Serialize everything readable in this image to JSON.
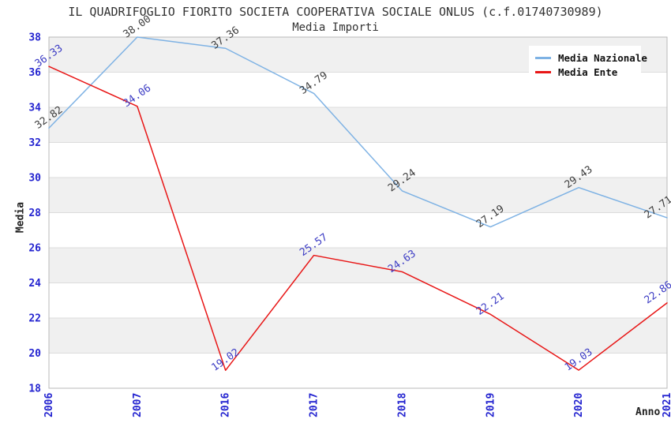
{
  "chart_data": {
    "type": "line",
    "title": "IL QUADRIFOGLIO FIORITO SOCIETA COOPERATIVA SOCIALE ONLUS (c.f.01740730989)",
    "subtitle": "Media Importi",
    "xlabel": "Anno",
    "ylabel": "Media",
    "categories": [
      "2006",
      "2007",
      "2016",
      "2017",
      "2018",
      "2019",
      "2020",
      "2021"
    ],
    "series": [
      {
        "name": "Media Nazionale",
        "color": "#7eb2e4",
        "label_color": "#3d3d3d",
        "values": [
          32.82,
          38.0,
          37.36,
          34.79,
          29.24,
          27.19,
          29.43,
          27.71
        ]
      },
      {
        "name": "Media Ente",
        "color": "#e81616",
        "label_color": "#3b3bc4",
        "values": [
          36.33,
          34.06,
          19.02,
          25.57,
          24.63,
          22.21,
          19.03,
          22.86
        ]
      }
    ],
    "ylim": [
      18,
      38
    ],
    "ytick_step": 2,
    "yticks": [
      18,
      20,
      22,
      24,
      26,
      28,
      30,
      32,
      34,
      36,
      38
    ],
    "grid": "alternating horizontal bands",
    "legend_position": "top-right",
    "point_label_decimals": 2,
    "colors": {
      "band": "#f0f0f0",
      "gridline": "#dcdcdc",
      "frame": "#b8b8b8",
      "tick_label": "#2424d0",
      "title_text": "#333333"
    }
  }
}
